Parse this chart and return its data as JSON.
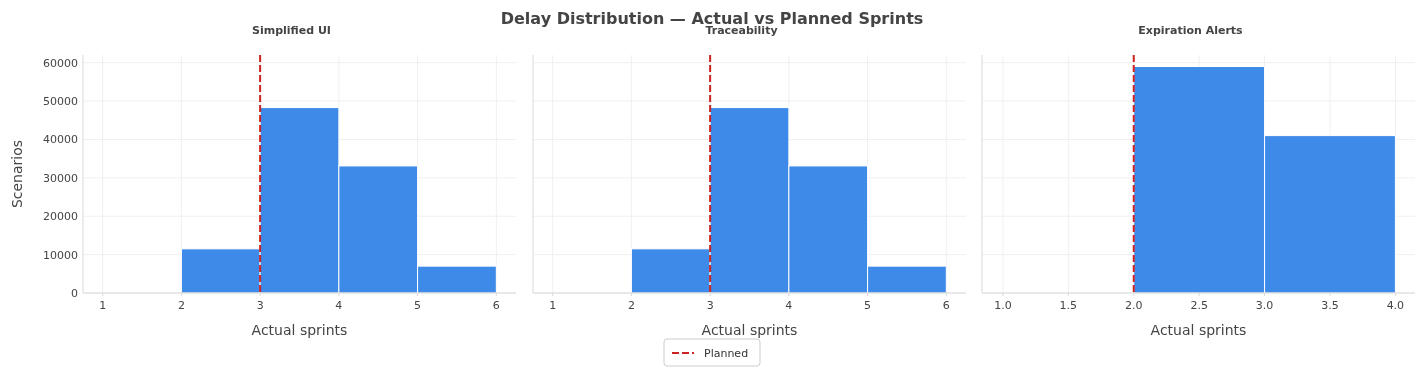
{
  "chart_data": [
    {
      "type": "histogram",
      "title": "Simplified UI",
      "xlabel": "Actual sprints",
      "ylabel": "Scenarios",
      "bins": [
        2,
        3,
        4,
        5,
        6
      ],
      "values": [
        11500,
        48300,
        33100,
        7000
      ],
      "color": "#3d8ae8",
      "xlim": [
        0.75,
        6.25
      ],
      "xticks": [
        1,
        2,
        3,
        4,
        5,
        6
      ],
      "ylim": [
        0,
        62000
      ],
      "yticks": [
        0,
        10000,
        20000,
        30000,
        40000,
        50000,
        60000
      ],
      "grid": true,
      "ref_lines": [
        {
          "axis": "x",
          "value": 3,
          "color": "#cc2222",
          "line_style": "dashed"
        }
      ],
      "annotations": [
        "Delay Distribution — Actual vs Planned Sprints"
      ]
    },
    {
      "type": "histogram",
      "title": "Traceability",
      "xlabel": "Actual sprints",
      "bins": [
        2,
        3,
        4,
        5,
        6
      ],
      "values": [
        11500,
        48300,
        33100,
        7000
      ],
      "color": "#3d8ae8",
      "xlim": [
        0.75,
        6.25
      ],
      "xticks": [
        1,
        2,
        3,
        4,
        5,
        6
      ],
      "ylim": [
        0,
        62000
      ],
      "yticks": [
        0,
        10000,
        20000,
        30000,
        40000,
        50000,
        60000
      ],
      "grid": true,
      "tick_labels": "x",
      "legend": "bottom",
      "ref_lines": [
        {
          "axis": "x",
          "value": 3,
          "label": "Planned",
          "color": "#cc2222",
          "line_style": "dashed"
        }
      ]
    },
    {
      "type": "histogram",
      "title": "Expiration Alerts",
      "xlabel": "Actual sprints",
      "bins": [
        2,
        3,
        4
      ],
      "values": [
        59000,
        41000
      ],
      "color": "#3d8ae8",
      "xlim": [
        0.84,
        4.15
      ],
      "xticks": [
        {
          "value": 1,
          "label": "1.0"
        },
        {
          "value": 1.5,
          "label": "1.5"
        },
        {
          "value": 2,
          "label": "2.0"
        },
        {
          "value": 2.5,
          "label": "2.5"
        },
        {
          "value": 3,
          "label": "3.0"
        },
        {
          "value": 3.5,
          "label": "3.5"
        },
        {
          "value": 4,
          "label": "4.0"
        }
      ],
      "ylim": [
        0,
        62000
      ],
      "yticks": [
        0,
        10000,
        20000,
        30000,
        40000,
        50000,
        60000
      ],
      "grid": true,
      "tick_labels": "x",
      "ref_lines": [
        {
          "axis": "x",
          "value": 2,
          "color": "#cc2222",
          "line_style": "dashed"
        }
      ]
    }
  ]
}
